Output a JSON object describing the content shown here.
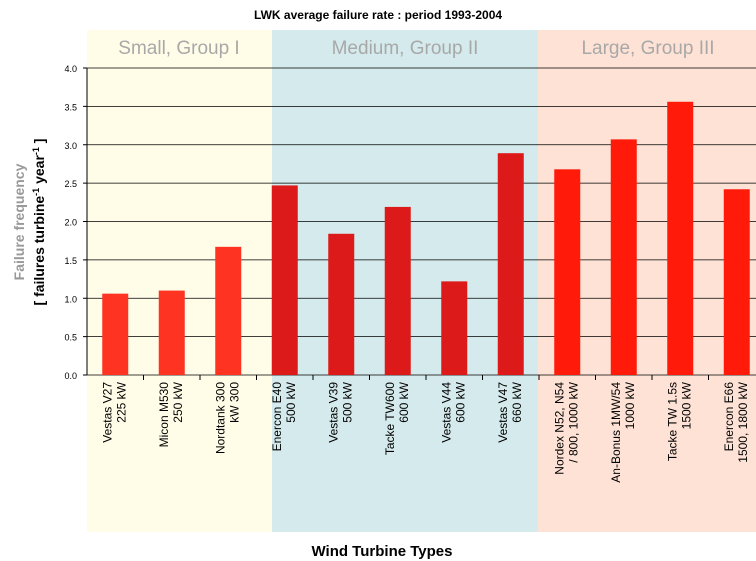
{
  "chart_data": {
    "type": "bar",
    "title": "LWK average failure rate : period 1993-2004",
    "groups": [
      "Small, Group I",
      "Medium, Group II",
      "Large, Group III"
    ],
    "y_label": "Failure frequency",
    "y_unit_parts": [
      "[ failures turbine",
      "-1",
      " year",
      "-1",
      " ]"
    ],
    "x_label": "Wind Turbine Types",
    "categories": [
      [
        "Vestas V27",
        "225 kW"
      ],
      [
        "Micon M530",
        "250 kW"
      ],
      [
        "Nordtank 300",
        "kW 300"
      ],
      [
        "Enercon E40",
        "500 kW"
      ],
      [
        "Vestas V39",
        "500 kW"
      ],
      [
        "Tacke TW600",
        "600 kW"
      ],
      [
        "Vestas V44",
        "600 kW"
      ],
      [
        "Vestas V47",
        "660 kW"
      ],
      [
        "Nordex N52, N54",
        "/ 800, 1000 kW"
      ],
      [
        "An-Bonus 1MW/54",
        "1000 kW"
      ],
      [
        "Tacke TW 1.5s",
        "1500 kW"
      ],
      [
        "Enercon E66",
        "1500, 1800 kW"
      ]
    ],
    "values": [
      1.06,
      1.1,
      1.67,
      2.47,
      1.84,
      2.19,
      1.22,
      2.89,
      2.68,
      3.07,
      3.56,
      2.42
    ],
    "colors": [
      "#ff3322",
      "#ff3322",
      "#ff3322",
      "#dd1a1a",
      "#dd1a1a",
      "#dd1a1a",
      "#dd1a1a",
      "#dd1a1a",
      "#ff1a0a",
      "#ff1a0a",
      "#ff1a0a",
      "#ff1a0a"
    ],
    "ylim": [
      0,
      4
    ],
    "yticks": [
      {
        "value": 0,
        "label": "0.0"
      },
      0.5,
      {
        "value": 1,
        "label": "1.0"
      },
      1.5,
      {
        "value": 2,
        "label": "2.0"
      },
      2.5,
      {
        "value": 3,
        "label": "3.0"
      },
      3.5,
      {
        "value": 4,
        "label": "4.0"
      }
    ],
    "grid": true
  }
}
